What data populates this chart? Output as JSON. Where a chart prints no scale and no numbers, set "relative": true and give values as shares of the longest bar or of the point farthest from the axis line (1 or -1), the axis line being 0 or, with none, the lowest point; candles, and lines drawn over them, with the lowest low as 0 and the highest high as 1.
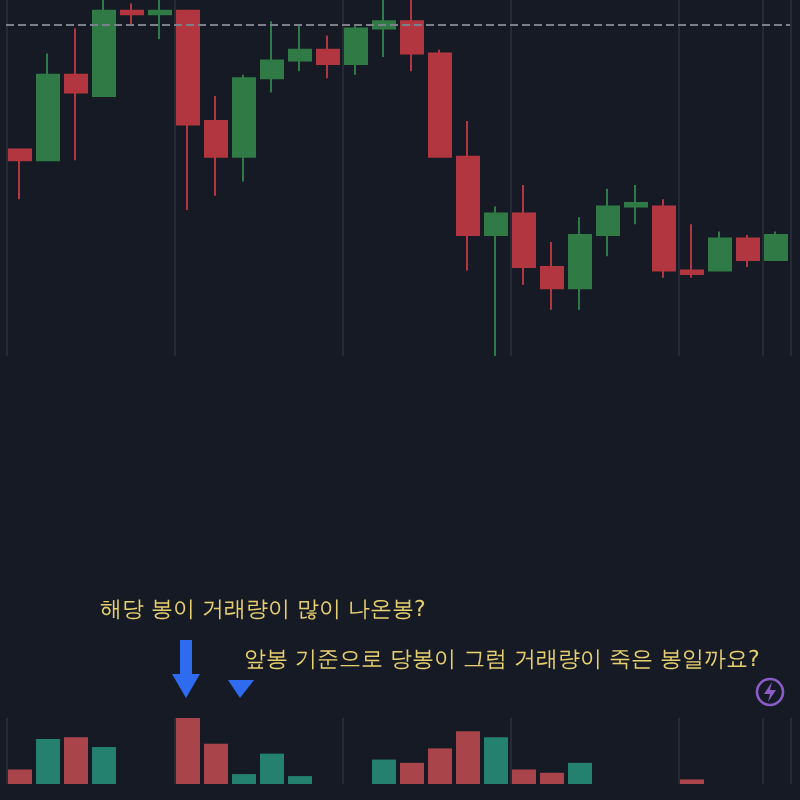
{
  "chart_data": [
    {
      "type": "candlestick",
      "relative": true,
      "grid": true,
      "categories": [
        null,
        null,
        null,
        null,
        null,
        null,
        null,
        null,
        null,
        null,
        null,
        null,
        null,
        null,
        null,
        null,
        null,
        null,
        null,
        null,
        null,
        null,
        null,
        null,
        null,
        null,
        null,
        null
      ],
      "ohlc": [
        [
          0.58,
          0.58,
          0.44,
          0.55
        ],
        [
          0.55,
          0.85,
          0.55,
          0.79
        ],
        [
          0.79,
          0.92,
          0.55,
          0.74
        ],
        [
          0.73,
          1,
          0.73,
          0.97
        ],
        [
          0.97,
          0.99,
          0.93,
          0.96
        ],
        [
          0.96,
          1,
          0.89,
          0.97
        ],
        [
          0.97,
          0.97,
          0.41,
          0.65
        ],
        [
          0.66,
          0.73,
          0.45,
          0.56
        ],
        [
          0.56,
          0.79,
          0.49,
          0.78
        ],
        [
          0.78,
          0.94,
          0.74,
          0.83
        ],
        [
          0.83,
          0.93,
          0.8,
          0.86
        ],
        [
          0.86,
          0.9,
          0.78,
          0.82
        ],
        [
          0.82,
          0.93,
          0.79,
          0.92
        ],
        [
          0.92,
          1,
          0.84,
          0.94
        ],
        [
          0.94,
          1,
          0.8,
          0.85
        ],
        [
          0.85,
          0.86,
          0.56,
          0.56
        ],
        [
          0.56,
          0.66,
          0.24,
          0.34
        ],
        [
          0.34,
          0.42,
          0,
          0.4
        ],
        [
          0.4,
          0.48,
          0.2,
          0.25
        ],
        [
          0.25,
          0.32,
          0.13,
          0.19
        ],
        [
          0.19,
          0.39,
          0.13,
          0.34
        ],
        [
          0.34,
          0.47,
          0.28,
          0.42
        ],
        [
          0.42,
          0.48,
          0.37,
          0.43
        ],
        [
          0.42,
          0.44,
          0.22,
          0.24
        ],
        [
          0.24,
          0.37,
          0.22,
          0.23
        ],
        [
          0.24,
          0.35,
          0.24,
          0.33
        ],
        [
          0.33,
          0.34,
          0.25,
          0.27
        ],
        [
          0.27,
          0.35,
          0.27,
          0.34
        ]
      ],
      "colors": [
        "#b2363f",
        "#2f7a45",
        "#b2363f",
        "#2f7a45",
        "#b2363f",
        "#2f7a45",
        "#b2363f",
        "#b2363f",
        "#2f7a45",
        "#2f7a45",
        "#2f7a45",
        "#b2363f",
        "#2f7a45",
        "#2f7a45",
        "#b2363f",
        "#b2363f",
        "#b2363f",
        "#2f7a45",
        "#b2363f",
        "#b2363f",
        "#2f7a45",
        "#2f7a45",
        "#2f7a45",
        "#b2363f",
        "#b2363f",
        "#2f7a45",
        "#b2363f",
        "#2f7a45"
      ],
      "ref_lines": [
        {
          "axis": "y",
          "value": 0.93,
          "color": "#7c808a",
          "line_style": "dashed"
        }
      ]
    },
    {
      "type": "bar",
      "relative": true,
      "grid": "x",
      "categories": [
        null,
        null,
        null,
        null,
        null,
        null,
        null,
        null,
        null,
        null,
        null,
        null,
        null,
        null,
        null,
        null,
        null,
        null,
        null,
        null,
        null,
        null,
        null,
        null,
        null,
        null,
        null,
        null
      ],
      "values": [
        0.22,
        0.68,
        0.71,
        0.56,
        null,
        null,
        1,
        0.61,
        0.15,
        0.46,
        0.12,
        null,
        null,
        0.37,
        0.32,
        0.54,
        0.8,
        0.71,
        0.22,
        0.17,
        0.32,
        null,
        null,
        null,
        0.07,
        null,
        null,
        null
      ],
      "colors": [
        "#a8444a",
        "#24806f",
        "#a8444a",
        "#24806f",
        "#24806f",
        "#24806f",
        "#a8444a",
        "#a8444a",
        "#24806f",
        "#24806f",
        "#24806f",
        "#a8444a",
        "#24806f",
        "#24806f",
        "#a8444a",
        "#a8444a",
        "#a8444a",
        "#24806f",
        "#a8444a",
        "#a8444a",
        "#24806f",
        "#24806f",
        "#24806f",
        "#a8444a",
        "#a8444a",
        "#24806f",
        "#a8444a",
        "#24806f"
      ],
      "annotations": [
        "해당 봉이 거래량이 많이 나온봉?",
        "앞봉 기준으로 당봉이 그럼 거래량이 죽은 봉일까요?"
      ]
    }
  ]
}
